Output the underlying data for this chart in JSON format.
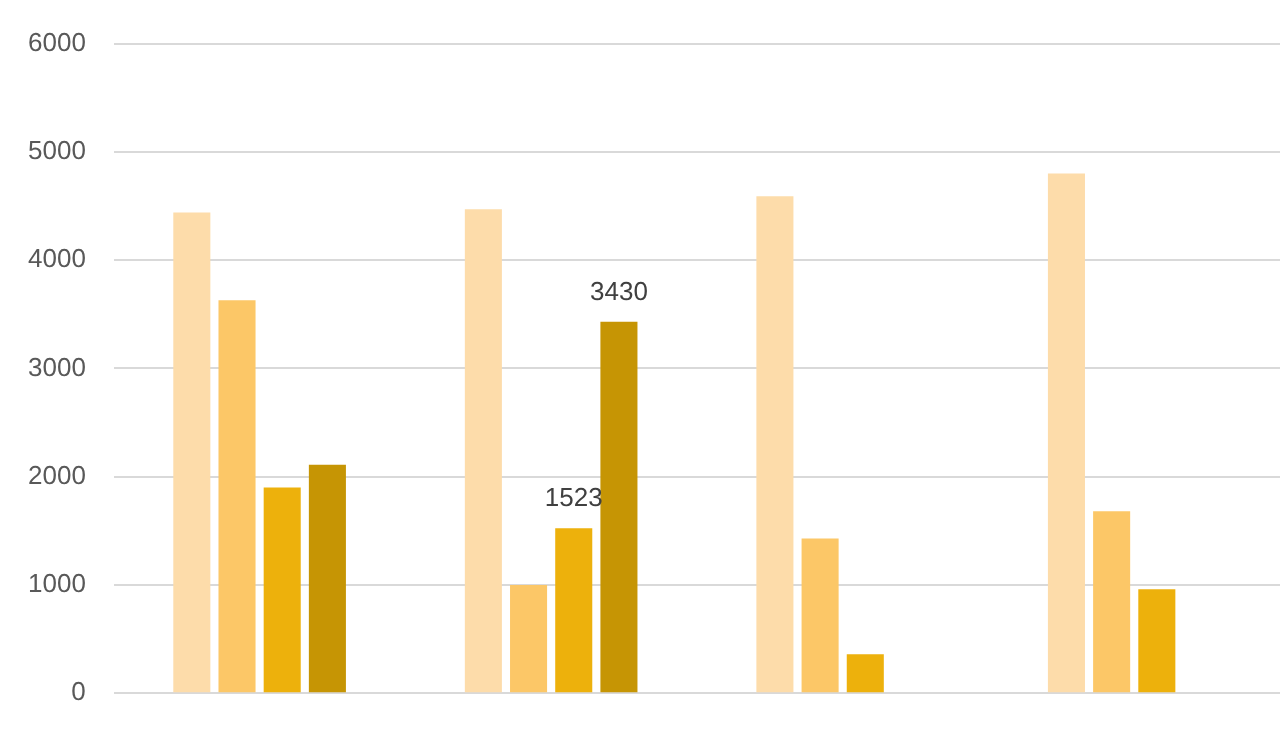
{
  "chart_data": {
    "type": "bar",
    "categories": [
      null,
      null,
      null,
      null
    ],
    "series": [
      {
        "color": "#fddcaa",
        "values": [
          4440,
          4470,
          4590,
          4800
        ]
      },
      {
        "color": "#fcc767",
        "values": [
          3630,
          1000,
          1430,
          1680
        ]
      },
      {
        "color": "#edb10c",
        "values": [
          1900,
          1523,
          360,
          960
        ],
        "value_labels": [
          null,
          "1523",
          null,
          null
        ]
      },
      {
        "color": "#c69504",
        "values": [
          2110,
          3430,
          null,
          null
        ],
        "value_labels": [
          null,
          "3430",
          null,
          null
        ]
      }
    ],
    "ylim": [
      0,
      6000
    ],
    "yticks": [
      0,
      1000,
      2000,
      3000,
      4000,
      5000,
      6000
    ],
    "grid": "y",
    "legend": false
  }
}
